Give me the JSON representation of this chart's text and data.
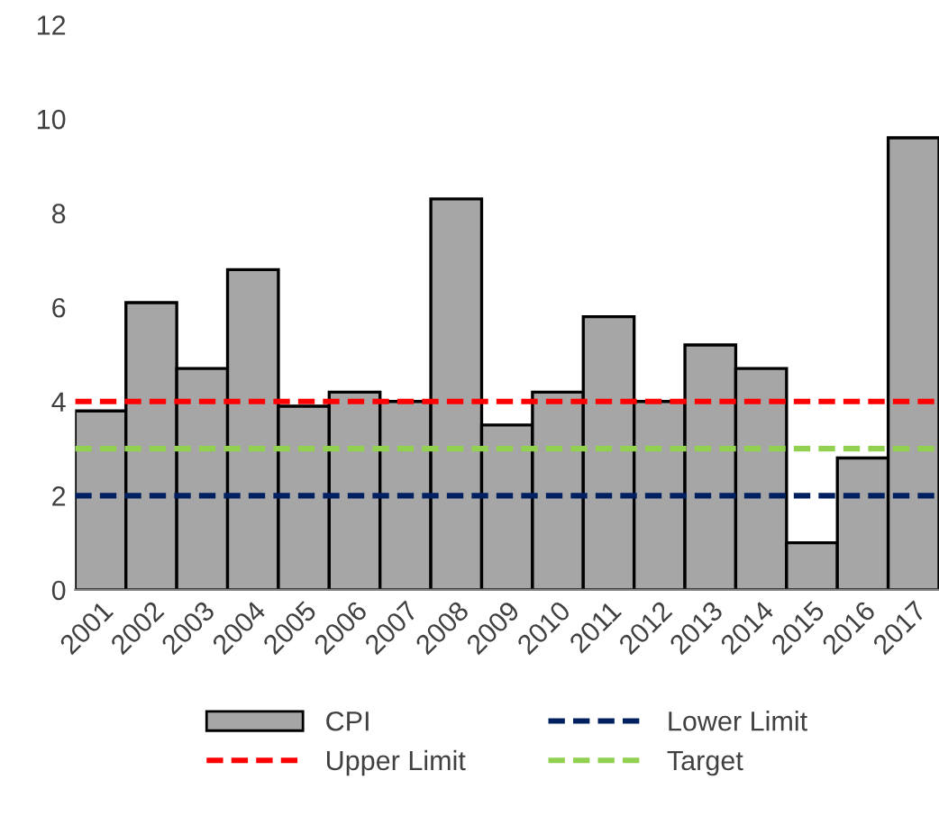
{
  "chart_data": {
    "type": "bar",
    "categories": [
      "2001",
      "2002",
      "2003",
      "2004",
      "2005",
      "2006",
      "2007",
      "2008",
      "2009",
      "2010",
      "2011",
      "2012",
      "2013",
      "2014",
      "2015",
      "2016",
      "2017"
    ],
    "series": [
      {
        "name": "CPI",
        "color": "#a6a6a6",
        "values": [
          3.8,
          6.1,
          4.7,
          6.8,
          3.9,
          4.2,
          4.0,
          8.3,
          3.5,
          4.2,
          5.8,
          4.0,
          5.2,
          4.7,
          1.0,
          2.8,
          9.6
        ]
      }
    ],
    "ref_lines": [
      {
        "axis": "y",
        "value": 4,
        "label": "Upper Limit",
        "color": "#ff0000",
        "line_style": "dashed"
      },
      {
        "axis": "y",
        "value": 2,
        "label": "Lower Limit",
        "color": "#002060",
        "line_style": "dashed"
      },
      {
        "axis": "y",
        "value": 3,
        "label": "Target",
        "color": "#92d050",
        "line_style": "dashed"
      }
    ],
    "ylim": [
      0,
      12
    ],
    "yticks": [
      0,
      2,
      4,
      6,
      8,
      10,
      12
    ],
    "grid": false,
    "legend": "bottom"
  }
}
